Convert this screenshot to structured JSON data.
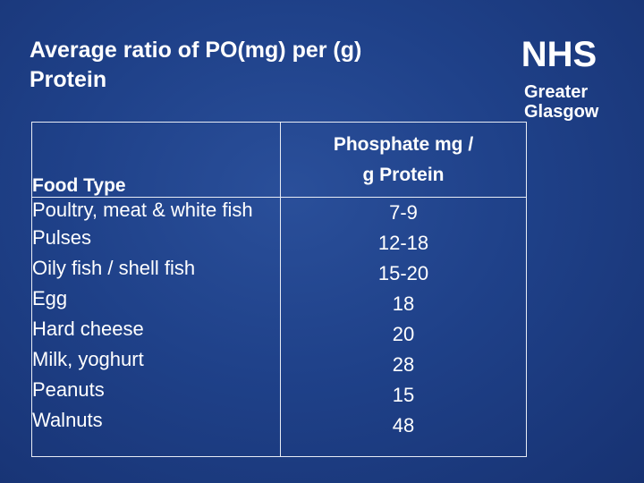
{
  "slide": {
    "title_line1": "Average ratio of PO(mg) per (g)",
    "title_line2": "Protein"
  },
  "logo": {
    "nhs": "NHS",
    "org_line1": "Greater",
    "org_line2": "Glasgow"
  },
  "table": {
    "headers": {
      "food_type": "Food Type",
      "phosphate_line1": "Phosphate mg /",
      "phosphate_line2": "g Protein"
    },
    "rows": [
      {
        "food": "Poultry, meat & white fish",
        "ratio": "7-9"
      },
      {
        "food": "Pulses",
        "ratio": "12-18"
      },
      {
        "food": "Oily fish / shell fish",
        "ratio": "15-20"
      },
      {
        "food": "Egg",
        "ratio": "18"
      },
      {
        "food": "Hard cheese",
        "ratio": "20"
      },
      {
        "food": "Milk, yoghurt",
        "ratio": "28"
      },
      {
        "food": "Peanuts",
        "ratio": "15"
      },
      {
        "food": "Walnuts",
        "ratio": "48"
      }
    ]
  }
}
